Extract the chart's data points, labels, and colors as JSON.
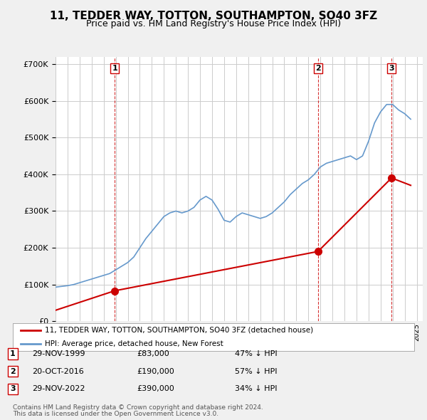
{
  "title": "11, TEDDER WAY, TOTTON, SOUTHAMPTON, SO40 3FZ",
  "subtitle": "Price paid vs. HM Land Registry's House Price Index (HPI)",
  "ylabel": "",
  "ylim": [
    0,
    720000
  ],
  "yticks": [
    0,
    100000,
    200000,
    300000,
    400000,
    500000,
    600000,
    700000
  ],
  "ytick_labels": [
    "£0",
    "£100K",
    "£200K",
    "£300K",
    "£400K",
    "£500K",
    "£600K",
    "£700K"
  ],
  "bg_color": "#f0f0f0",
  "plot_bg_color": "#ffffff",
  "hpi_color": "#6699cc",
  "price_color": "#cc0000",
  "marker_color": "#cc0000",
  "dashed_color": "#cc0000",
  "legend_label_price": "11, TEDDER WAY, TOTTON, SOUTHAMPTON, SO40 3FZ (detached house)",
  "legend_label_hpi": "HPI: Average price, detached house, New Forest",
  "transactions": [
    {
      "num": 1,
      "date": "29-NOV-1999",
      "price": 83000,
      "hpi_pct": "47% ↓ HPI",
      "x": 1999.91
    },
    {
      "num": 2,
      "date": "20-OCT-2016",
      "price": 190000,
      "hpi_pct": "57% ↓ HPI",
      "x": 2016.8
    },
    {
      "num": 3,
      "date": "29-NOV-2022",
      "price": 390000,
      "hpi_pct": "34% ↓ HPI",
      "x": 2022.91
    }
  ],
  "footnote1": "Contains HM Land Registry data © Crown copyright and database right 2024.",
  "footnote2": "This data is licensed under the Open Government Licence v3.0.",
  "hpi_data_x": [
    1995.0,
    1995.5,
    1996.0,
    1996.5,
    1997.0,
    1997.5,
    1998.0,
    1998.5,
    1999.0,
    1999.5,
    2000.0,
    2000.5,
    2001.0,
    2001.5,
    2002.0,
    2002.5,
    2003.0,
    2003.5,
    2004.0,
    2004.5,
    2005.0,
    2005.5,
    2006.0,
    2006.5,
    2007.0,
    2007.5,
    2008.0,
    2008.5,
    2009.0,
    2009.5,
    2010.0,
    2010.5,
    2011.0,
    2011.5,
    2012.0,
    2012.5,
    2013.0,
    2013.5,
    2014.0,
    2014.5,
    2015.0,
    2015.5,
    2016.0,
    2016.5,
    2017.0,
    2017.5,
    2018.0,
    2018.5,
    2019.0,
    2019.5,
    2020.0,
    2020.5,
    2021.0,
    2021.5,
    2022.0,
    2022.5,
    2023.0,
    2023.5,
    2024.0,
    2024.5
  ],
  "hpi_data_y": [
    93000,
    95000,
    97000,
    100000,
    105000,
    110000,
    115000,
    120000,
    125000,
    130000,
    140000,
    150000,
    160000,
    175000,
    200000,
    225000,
    245000,
    265000,
    285000,
    295000,
    300000,
    295000,
    300000,
    310000,
    330000,
    340000,
    330000,
    305000,
    275000,
    270000,
    285000,
    295000,
    290000,
    285000,
    280000,
    285000,
    295000,
    310000,
    325000,
    345000,
    360000,
    375000,
    385000,
    400000,
    420000,
    430000,
    435000,
    440000,
    445000,
    450000,
    440000,
    450000,
    490000,
    540000,
    570000,
    590000,
    590000,
    575000,
    565000,
    550000
  ],
  "price_data_x": [
    1995.0,
    1999.91,
    2016.8,
    2022.91,
    2024.5
  ],
  "price_data_y": [
    30000,
    83000,
    190000,
    390000,
    370000
  ]
}
